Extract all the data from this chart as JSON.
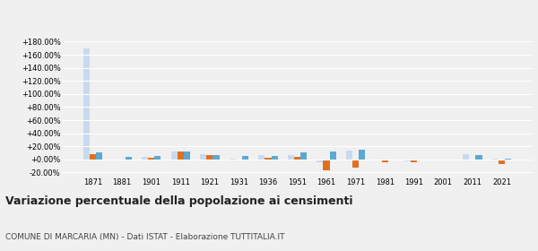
{
  "years": [
    1871,
    1881,
    1901,
    1911,
    1921,
    1931,
    1936,
    1951,
    1961,
    1971,
    1981,
    1991,
    2001,
    2011,
    2021
  ],
  "marcaria": [
    8.0,
    -1.5,
    2.0,
    12.0,
    7.0,
    -1.0,
    2.0,
    4.0,
    -17.0,
    -13.0,
    -4.0,
    -4.0,
    -1.5,
    -1.0,
    -7.0
  ],
  "provincia_mn": [
    170.0,
    -2.0,
    4.0,
    12.0,
    7.5,
    1.0,
    6.0,
    7.0,
    -4.0,
    13.0,
    0.0,
    -2.5,
    -1.5,
    8.0,
    1.0
  ],
  "lombardia": [
    10.0,
    4.0,
    5.0,
    12.0,
    7.0,
    5.0,
    5.0,
    10.0,
    12.0,
    15.0,
    -1.5,
    -1.0,
    -2.0,
    6.0,
    1.5
  ],
  "color_marcaria": "#e07020",
  "color_provincia": "#c8daf0",
  "color_lombardia": "#5ba8d0",
  "title": "Variazione percentuale della popolazione ai censimenti",
  "subtitle": "COMUNE DI MARCARIA (MN) - Dati ISTAT - Elaborazione TUTTITALIA.IT",
  "ylim": [
    -25,
    190
  ],
  "yticks": [
    -20,
    0,
    20,
    40,
    60,
    80,
    100,
    120,
    140,
    160,
    180
  ],
  "background_color": "#f0f0f0"
}
